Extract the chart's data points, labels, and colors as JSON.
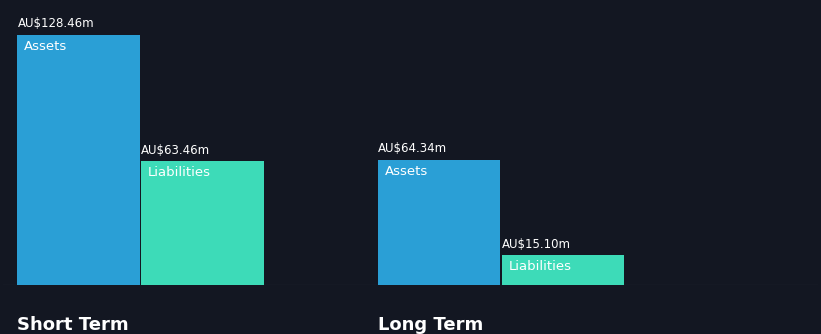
{
  "background_color": "#131722",
  "bar_groups": [
    {
      "label": "Short Term",
      "bars": [
        {
          "name": "Assets",
          "value": 128.46,
          "color": "#2a9fd6",
          "text_label": "Assets",
          "value_label": "AU$128.46m"
        },
        {
          "name": "Liabilities",
          "value": 63.46,
          "color": "#3ddbb8",
          "text_label": "Liabilities",
          "value_label": "AU$63.46m"
        }
      ]
    },
    {
      "label": "Long Term",
      "bars": [
        {
          "name": "Assets",
          "value": 64.34,
          "color": "#2a9fd6",
          "text_label": "Assets",
          "value_label": "AU$64.34m"
        },
        {
          "name": "Liabilities",
          "value": 15.1,
          "color": "#3ddbb8",
          "text_label": "Liabilities",
          "value_label": "AU$15.10m"
        }
      ]
    }
  ],
  "ylim": [
    0,
    145
  ],
  "value_label_fontsize": 8.5,
  "inner_label_fontsize": 9.5,
  "group_label_fontsize": 13,
  "text_color": "#ffffff",
  "liabilities_text_color": "#1a1f2e",
  "bottom_line_color": "#3a3f50"
}
